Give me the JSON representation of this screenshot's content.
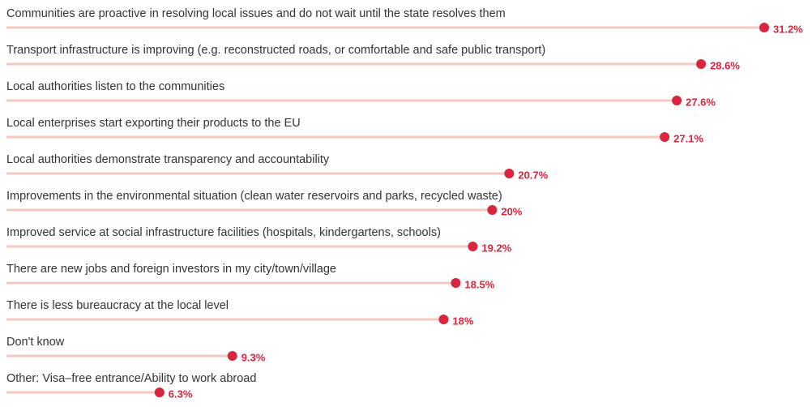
{
  "chart_data": {
    "type": "lollipop",
    "categories": [
      "Communities are proactive in resolving local issues and do not wait until the state resolves them",
      "Transport infrastructure is improving (e.g. reconstructed roads, or comfortable and safe public transport)",
      "Local authorities listen to the communities",
      "Local enterprises start exporting their products to the EU",
      "Local authorities demonstrate transparency and accountability",
      "Improvements in the environmental situation (clean water reservoirs and parks, recycled waste)",
      "Improved service at social infrastructure facilities (hospitals, kindergartens, schools)",
      "There are new jobs and foreign investors in my city/town/village",
      "There is less bureaucracy at the local level",
      "Don't know",
      "Other: Visa–free entrance/Ability to work abroad"
    ],
    "values": [
      31.2,
      28.6,
      27.6,
      27.1,
      20.7,
      20,
      19.2,
      18.5,
      18,
      9.3,
      6.3
    ],
    "value_labels": [
      "31.2%",
      "28.6%",
      "27.6%",
      "27.1%",
      "20.7%",
      "20%",
      "19.2%",
      "18.5%",
      "18%",
      "9.3%",
      "6.3%"
    ],
    "color": "#d7263d",
    "line_color": "#f3c9c2"
  }
}
